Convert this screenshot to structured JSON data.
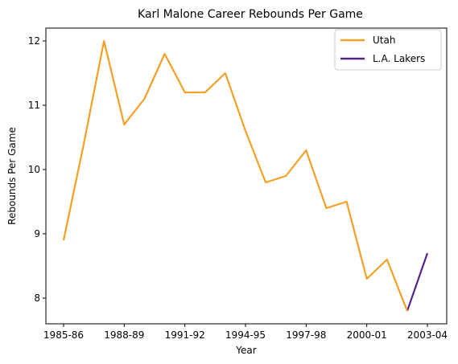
{
  "chart_data": {
    "type": "line",
    "title": "Karl Malone Career Rebounds Per Game",
    "xlabel": "Year",
    "ylabel": "Rebounds Per Game",
    "x": [
      "1985-86",
      "1986-87",
      "1987-88",
      "1988-89",
      "1989-90",
      "1990-91",
      "1991-92",
      "1992-93",
      "1993-94",
      "1994-95",
      "1995-96",
      "1996-97",
      "1997-98",
      "1998-99",
      "1999-00",
      "2000-01",
      "2001-02",
      "2002-03",
      "2003-04"
    ],
    "x_tick_labels": [
      "1985-86",
      "1988-89",
      "1991-92",
      "1994-95",
      "1997-98",
      "2000-01",
      "2003-04"
    ],
    "x_tick_indices": [
      0,
      3,
      6,
      9,
      12,
      15,
      18
    ],
    "ylim": [
      7.6,
      12.2
    ],
    "y_ticks": [
      8,
      9,
      10,
      11,
      12
    ],
    "grid": false,
    "legend_placement": "top-right",
    "series": [
      {
        "name": "Utah",
        "color": "#F4A024",
        "values": [
          8.9,
          10.4,
          12.0,
          10.7,
          11.1,
          11.8,
          11.2,
          11.2,
          11.5,
          10.6,
          9.8,
          9.9,
          10.3,
          9.4,
          9.5,
          8.3,
          8.6,
          7.8,
          null
        ]
      },
      {
        "name": "L.A. Lakers",
        "color": "#552583",
        "values": [
          null,
          null,
          null,
          null,
          null,
          null,
          null,
          null,
          null,
          null,
          null,
          null,
          null,
          null,
          null,
          null,
          null,
          7.8,
          8.7
        ]
      }
    ],
    "utah_display_color": "#F4A024"
  }
}
